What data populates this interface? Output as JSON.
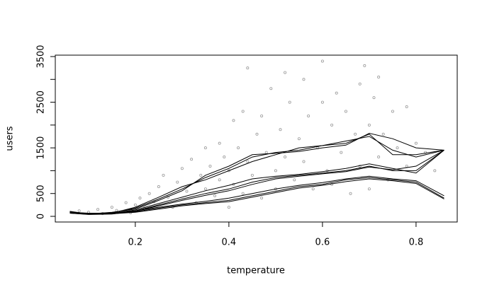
{
  "chart_data": {
    "type": "scatter",
    "x_label": "temperature",
    "y_label": "users",
    "xlim": [
      0.029,
      0.888
    ],
    "ylim": [
      -124,
      3531
    ],
    "xticks": [
      0.2,
      0.4,
      0.6,
      0.8
    ],
    "yticks": [
      0,
      500,
      {
        "value": 1000,
        "label": null
      },
      1500,
      {
        "value": 2000,
        "label": null
      },
      2500,
      {
        "value": 3000,
        "label": null
      },
      3500
    ],
    "points": {
      "color": "#9a9a9a",
      "x": [
        0.08,
        0.1,
        0.12,
        0.13,
        0.15,
        0.16,
        0.18,
        0.19,
        0.2,
        0.21,
        0.22,
        0.23,
        0.24,
        0.25,
        0.26,
        0.27,
        0.28,
        0.29,
        0.3,
        0.31,
        0.32,
        0.33,
        0.34,
        0.35,
        0.35,
        0.36,
        0.37,
        0.38,
        0.38,
        0.39,
        0.4,
        0.4,
        0.41,
        0.41,
        0.42,
        0.43,
        0.43,
        0.44,
        0.44,
        0.45,
        0.46,
        0.47,
        0.47,
        0.48,
        0.49,
        0.5,
        0.5,
        0.51,
        0.52,
        0.52,
        0.53,
        0.54,
        0.55,
        0.56,
        0.56,
        0.57,
        0.58,
        0.59,
        0.6,
        0.6,
        0.61,
        0.62,
        0.62,
        0.63,
        0.64,
        0.65,
        0.66,
        0.67,
        0.68,
        0.68,
        0.69,
        0.7,
        0.7,
        0.71,
        0.72,
        0.72,
        0.73,
        0.74,
        0.75,
        0.76,
        0.78,
        0.78,
        0.8,
        0.82,
        0.84
      ],
      "y": [
        120,
        90,
        150,
        60,
        200,
        130,
        300,
        80,
        250,
        400,
        180,
        500,
        320,
        650,
        900,
        420,
        200,
        750,
        1050,
        550,
        1250,
        300,
        900,
        1500,
        600,
        1100,
        450,
        1600,
        800,
        1300,
        200,
        1000,
        2100,
        700,
        1500,
        2300,
        500,
        3250,
        1200,
        900,
        1800,
        2200,
        400,
        1400,
        2800,
        1000,
        600,
        1900,
        3150,
        1300,
        2500,
        800,
        1700,
        3000,
        1200,
        2200,
        600,
        1500,
        3400,
        2500,
        1000,
        2000,
        700,
        2700,
        1400,
        2300,
        500,
        1800,
        2900,
        1100,
        3300,
        2000,
        600,
        2600,
        1300,
        3050,
        1800,
        800,
        2300,
        1500,
        2400,
        1100,
        1600,
        1400,
        1000
      ]
    },
    "lines": [
      {
        "color": "#000000",
        "x": [
          0.06,
          0.1,
          0.15,
          0.2,
          0.25,
          0.3,
          0.35,
          0.4,
          0.45,
          0.5,
          0.55,
          0.6,
          0.65,
          0.7,
          0.75,
          0.8,
          0.86
        ],
        "y": [
          100,
          60,
          80,
          180,
          380,
          600,
          850,
          1050,
          1300,
          1400,
          1450,
          1550,
          1600,
          1800,
          1350,
          1350,
          1450
        ]
      },
      {
        "color": "#000000",
        "x": [
          0.06,
          0.1,
          0.15,
          0.2,
          0.25,
          0.3,
          0.35,
          0.4,
          0.45,
          0.5,
          0.55,
          0.6,
          0.65,
          0.7,
          0.75,
          0.8,
          0.86
        ],
        "y": [
          90,
          70,
          70,
          200,
          420,
          650,
          800,
          1000,
          1200,
          1350,
          1500,
          1550,
          1650,
          1750,
          1450,
          1300,
          1450
        ]
      },
      {
        "color": "#000000",
        "x": [
          0.06,
          0.1,
          0.15,
          0.2,
          0.25,
          0.3,
          0.35,
          0.4,
          0.45,
          0.5,
          0.55,
          0.6,
          0.65,
          0.7,
          0.75,
          0.8,
          0.86
        ],
        "y": [
          110,
          50,
          90,
          160,
          350,
          560,
          900,
          1100,
          1350,
          1380,
          1420,
          1500,
          1560,
          1820,
          1700,
          1500,
          1450
        ]
      },
      {
        "color": "#000000",
        "x": [
          0.06,
          0.1,
          0.15,
          0.2,
          0.25,
          0.3,
          0.35,
          0.4,
          0.45,
          0.5,
          0.55,
          0.6,
          0.65,
          0.7,
          0.75,
          0.8,
          0.86
        ],
        "y": [
          80,
          50,
          60,
          120,
          250,
          380,
          500,
          600,
          750,
          850,
          900,
          950,
          1000,
          1100,
          1000,
          1000,
          1450
        ]
      },
      {
        "color": "#000000",
        "x": [
          0.06,
          0.1,
          0.15,
          0.2,
          0.25,
          0.3,
          0.35,
          0.4,
          0.45,
          0.5,
          0.55,
          0.6,
          0.65,
          0.7,
          0.75,
          0.8,
          0.86
        ],
        "y": [
          90,
          60,
          70,
          140,
          280,
          420,
          560,
          680,
          820,
          880,
          920,
          980,
          1050,
          1150,
          1050,
          950,
          1450
        ]
      },
      {
        "color": "#000000",
        "x": [
          0.06,
          0.1,
          0.15,
          0.2,
          0.25,
          0.3,
          0.35,
          0.4,
          0.45,
          0.5,
          0.55,
          0.6,
          0.65,
          0.7,
          0.75,
          0.8,
          0.86
        ],
        "y": [
          70,
          40,
          50,
          110,
          230,
          350,
          460,
          560,
          700,
          820,
          880,
          930,
          980,
          1080,
          1020,
          1100,
          1450
        ]
      },
      {
        "color": "#000000",
        "x": [
          0.06,
          0.1,
          0.15,
          0.2,
          0.25,
          0.3,
          0.35,
          0.4,
          0.45,
          0.5,
          0.55,
          0.6,
          0.65,
          0.7,
          0.75,
          0.8,
          0.86
        ],
        "y": [
          80,
          50,
          60,
          100,
          180,
          250,
          300,
          350,
          450,
          550,
          650,
          700,
          800,
          850,
          800,
          750,
          400
        ]
      },
      {
        "color": "#000000",
        "x": [
          0.06,
          0.1,
          0.15,
          0.2,
          0.25,
          0.3,
          0.35,
          0.4,
          0.45,
          0.5,
          0.55,
          0.6,
          0.65,
          0.7,
          0.75,
          0.8,
          0.86
        ],
        "y": [
          90,
          60,
          70,
          120,
          200,
          270,
          330,
          400,
          500,
          600,
          680,
          740,
          820,
          880,
          820,
          780,
          450
        ]
      },
      {
        "color": "#000000",
        "x": [
          0.06,
          0.1,
          0.15,
          0.2,
          0.25,
          0.3,
          0.35,
          0.4,
          0.45,
          0.5,
          0.55,
          0.6,
          0.65,
          0.7,
          0.75,
          0.8,
          0.86
        ],
        "y": [
          70,
          45,
          55,
          90,
          160,
          230,
          280,
          320,
          420,
          520,
          620,
          680,
          760,
          820,
          780,
          720,
          380
        ]
      }
    ]
  }
}
